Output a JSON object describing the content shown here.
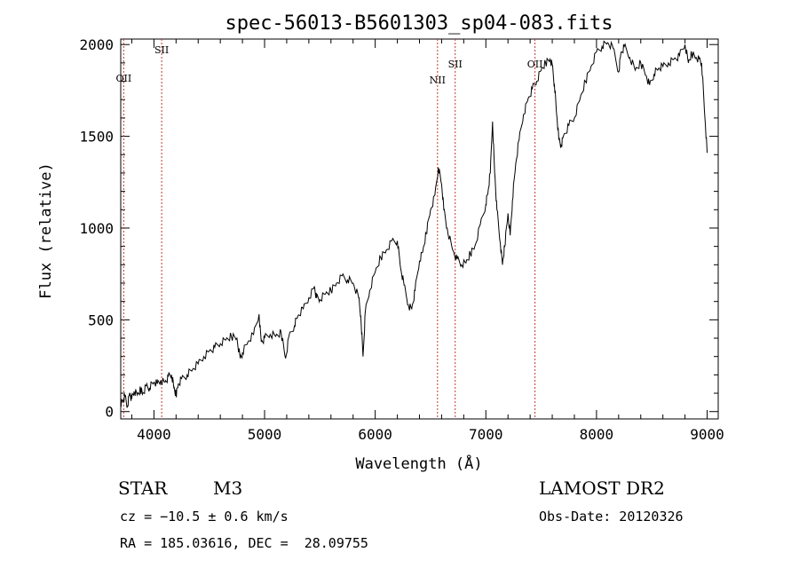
{
  "chart_data": {
    "type": "line",
    "title": "spec-56013-B5601303_sp04-083.fits",
    "xlabel": "Wavelength (Å)",
    "ylabel": "Flux (relative)",
    "xlim": [
      3700,
      9100
    ],
    "ylim": [
      -40,
      2030
    ],
    "xticks": [
      4000,
      5000,
      6000,
      7000,
      8000,
      9000
    ],
    "yticks": [
      0,
      500,
      1000,
      1500,
      2000
    ],
    "grid": false,
    "series": [
      {
        "values": [
          [
            3700,
            40
          ],
          [
            3720,
            60
          ],
          [
            3740,
            80
          ],
          [
            3760,
            30
          ],
          [
            3780,
            100
          ],
          [
            3800,
            70
          ],
          [
            3820,
            110
          ],
          [
            3850,
            90
          ],
          [
            3880,
            120
          ],
          [
            3900,
            100
          ],
          [
            3930,
            140
          ],
          [
            3960,
            130
          ],
          [
            4000,
            160
          ],
          [
            4030,
            150
          ],
          [
            4060,
            170
          ],
          [
            4100,
            160
          ],
          [
            4130,
            190
          ],
          [
            4160,
            200
          ],
          [
            4180,
            130
          ],
          [
            4200,
            90
          ],
          [
            4220,
            150
          ],
          [
            4250,
            180
          ],
          [
            4300,
            200
          ],
          [
            4350,
            230
          ],
          [
            4400,
            260
          ],
          [
            4450,
            300
          ],
          [
            4500,
            330
          ],
          [
            4550,
            350
          ],
          [
            4600,
            370
          ],
          [
            4650,
            390
          ],
          [
            4700,
            410
          ],
          [
            4750,
            400
          ],
          [
            4780,
            290
          ],
          [
            4800,
            320
          ],
          [
            4850,
            380
          ],
          [
            4900,
            420
          ],
          [
            4950,
            530
          ],
          [
            4970,
            380
          ],
          [
            5000,
            400
          ],
          [
            5050,
            420
          ],
          [
            5100,
            410
          ],
          [
            5150,
            430
          ],
          [
            5190,
            290
          ],
          [
            5220,
            410
          ],
          [
            5270,
            470
          ],
          [
            5300,
            520
          ],
          [
            5350,
            560
          ],
          [
            5400,
            620
          ],
          [
            5450,
            680
          ],
          [
            5470,
            620
          ],
          [
            5500,
            610
          ],
          [
            5550,
            640
          ],
          [
            5600,
            660
          ],
          [
            5650,
            700
          ],
          [
            5700,
            740
          ],
          [
            5750,
            720
          ],
          [
            5800,
            700
          ],
          [
            5850,
            620
          ],
          [
            5870,
            520
          ],
          [
            5890,
            300
          ],
          [
            5910,
            540
          ],
          [
            5950,
            660
          ],
          [
            6000,
            760
          ],
          [
            6050,
            840
          ],
          [
            6100,
            880
          ],
          [
            6150,
            930
          ],
          [
            6200,
            930
          ],
          [
            6230,
            780
          ],
          [
            6260,
            690
          ],
          [
            6300,
            580
          ],
          [
            6330,
            560
          ],
          [
            6360,
            660
          ],
          [
            6400,
            820
          ],
          [
            6430,
            870
          ],
          [
            6460,
            970
          ],
          [
            6500,
            1100
          ],
          [
            6540,
            1180
          ],
          [
            6570,
            1330
          ],
          [
            6600,
            1240
          ],
          [
            6620,
            1100
          ],
          [
            6650,
            1000
          ],
          [
            6700,
            880
          ],
          [
            6740,
            830
          ],
          [
            6780,
            800
          ],
          [
            6820,
            810
          ],
          [
            6860,
            860
          ],
          [
            6900,
            900
          ],
          [
            6950,
            1020
          ],
          [
            7000,
            1130
          ],
          [
            7020,
            1200
          ],
          [
            7040,
            1300
          ],
          [
            7060,
            1580
          ],
          [
            7080,
            1300
          ],
          [
            7100,
            1100
          ],
          [
            7130,
            920
          ],
          [
            7150,
            800
          ],
          [
            7170,
            900
          ],
          [
            7200,
            1080
          ],
          [
            7220,
            960
          ],
          [
            7240,
            1150
          ],
          [
            7270,
            1350
          ],
          [
            7300,
            1480
          ],
          [
            7340,
            1620
          ],
          [
            7380,
            1700
          ],
          [
            7420,
            1760
          ],
          [
            7460,
            1800
          ],
          [
            7500,
            1860
          ],
          [
            7540,
            1900
          ],
          [
            7580,
            1920
          ],
          [
            7600,
            1890
          ],
          [
            7620,
            1780
          ],
          [
            7640,
            1620
          ],
          [
            7660,
            1480
          ],
          [
            7680,
            1450
          ],
          [
            7700,
            1500
          ],
          [
            7750,
            1560
          ],
          [
            7800,
            1600
          ],
          [
            7850,
            1700
          ],
          [
            7900,
            1800
          ],
          [
            7950,
            1880
          ],
          [
            8000,
            1960
          ],
          [
            8050,
            1990
          ],
          [
            8100,
            2010
          ],
          [
            8150,
            1980
          ],
          [
            8200,
            1850
          ],
          [
            8220,
            1950
          ],
          [
            8250,
            1990
          ],
          [
            8300,
            1930
          ],
          [
            8350,
            1860
          ],
          [
            8400,
            1900
          ],
          [
            8450,
            1830
          ],
          [
            8480,
            1780
          ],
          [
            8520,
            1840
          ],
          [
            8560,
            1870
          ],
          [
            8600,
            1880
          ],
          [
            8650,
            1900
          ],
          [
            8700,
            1920
          ],
          [
            8750,
            1940
          ],
          [
            8800,
            2000
          ],
          [
            8830,
            1900
          ],
          [
            8860,
            1950
          ],
          [
            8900,
            1930
          ],
          [
            8930,
            1920
          ],
          [
            8950,
            1900
          ],
          [
            8980,
            1600
          ],
          [
            9000,
            1410
          ]
        ]
      }
    ],
    "lines": [
      {
        "label": "OII",
        "x": 3727
      },
      {
        "label": "SII",
        "x": 4070
      },
      {
        "label": "NII",
        "x": 6563
      },
      {
        "label": "SII",
        "x": 6723
      },
      {
        "label": "OII",
        "x": 7444
      }
    ],
    "line_color": "#c0392b"
  },
  "info": {
    "object_type": "STAR",
    "subclass": "M3",
    "catalog": "LAMOST DR2",
    "cz": "cz = −10.5 ± 0.6 km/s",
    "obs_date": "Obs-Date: 20120326",
    "coords": "RA = 185.03616, DEC =  28.09755"
  }
}
